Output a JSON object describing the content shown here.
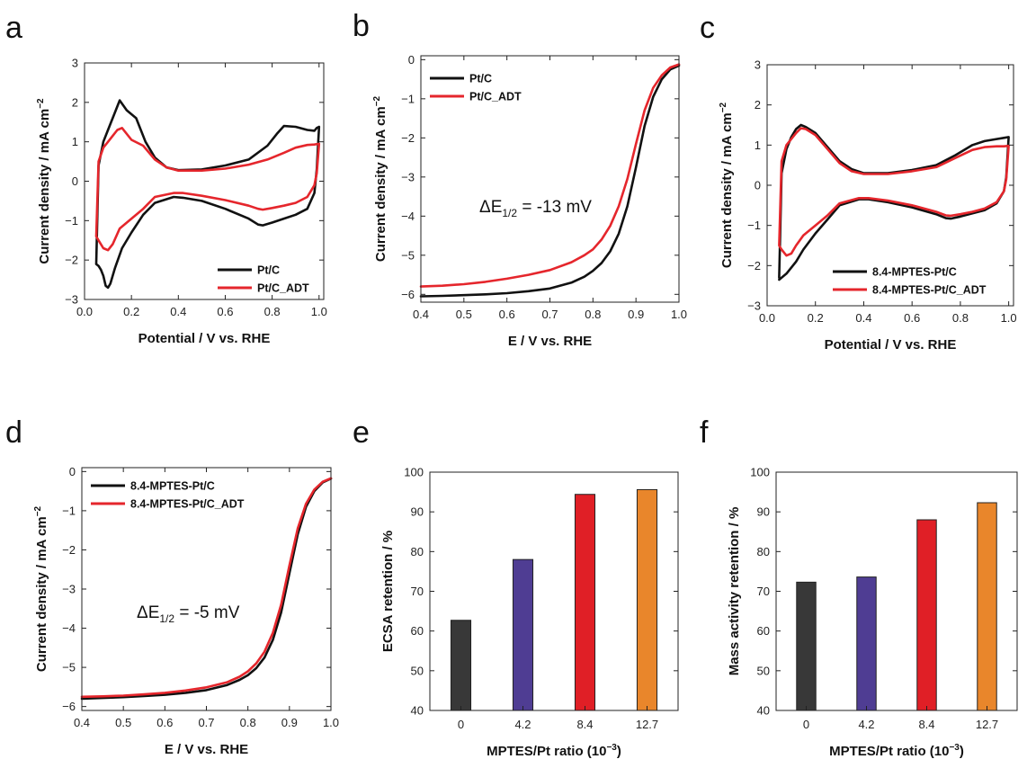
{
  "colors": {
    "pt_c": "#111111",
    "pt_c_adt": "#e5262c",
    "bar_0": "#383838",
    "bar_4_2": "#4f3d93",
    "bar_8_4": "#e01f26",
    "bar_12_7": "#e9862b"
  },
  "chart_data": [
    {
      "panel": "a",
      "type": "line",
      "subtype": "cyclic_voltammogram",
      "xlabel": "Potential / V vs. RHE",
      "ylabel": "Current density / mA cm",
      "ylabel_superscript": "−2",
      "xlim": [
        0.0,
        1.02
      ],
      "ylim": [
        -3,
        3
      ],
      "xticks": [
        0.0,
        0.2,
        0.4,
        0.6,
        0.8,
        1.0
      ],
      "xtick_labels": [
        "0.0",
        "0.2",
        "0.4",
        "0.6",
        "0.8",
        "1.0"
      ],
      "yticks": [
        -3,
        -2,
        -1,
        0,
        1,
        2,
        3
      ],
      "ytick_labels": [
        "−3",
        "−2",
        "−1",
        "0",
        "1",
        "2",
        "3"
      ],
      "legend_position": "bottom-right",
      "series": [
        {
          "name": "Pt/C",
          "color": "#111111",
          "x": [
            0.05,
            0.06,
            0.08,
            0.1,
            0.12,
            0.15,
            0.18,
            0.22,
            0.26,
            0.3,
            0.35,
            0.4,
            0.5,
            0.6,
            0.7,
            0.78,
            0.82,
            0.85,
            0.9,
            0.95,
            0.98,
            0.99,
            1.0,
            0.99,
            0.98,
            0.95,
            0.9,
            0.85,
            0.8,
            0.76,
            0.74,
            0.7,
            0.6,
            0.5,
            0.42,
            0.38,
            0.3,
            0.25,
            0.2,
            0.16,
            0.13,
            0.11,
            0.1,
            0.09,
            0.08,
            0.07,
            0.06,
            0.05
          ],
          "y": [
            -2.1,
            0.4,
            1.0,
            1.3,
            1.6,
            2.05,
            1.8,
            1.6,
            1.0,
            0.6,
            0.35,
            0.28,
            0.3,
            0.4,
            0.55,
            0.9,
            1.2,
            1.4,
            1.38,
            1.3,
            1.28,
            1.35,
            1.38,
            0.3,
            -0.3,
            -0.7,
            -0.85,
            -0.95,
            -1.05,
            -1.12,
            -1.1,
            -0.95,
            -0.7,
            -0.5,
            -0.42,
            -0.4,
            -0.55,
            -0.85,
            -1.3,
            -1.7,
            -2.2,
            -2.6,
            -2.7,
            -2.65,
            -2.4,
            -2.25,
            -2.15,
            -2.1
          ]
        },
        {
          "name": "Pt/C_ADT",
          "color": "#e5262c",
          "x": [
            0.05,
            0.06,
            0.08,
            0.1,
            0.12,
            0.14,
            0.16,
            0.2,
            0.25,
            0.3,
            0.35,
            0.4,
            0.5,
            0.6,
            0.7,
            0.78,
            0.85,
            0.9,
            0.95,
            0.98,
            1.0,
            0.99,
            0.98,
            0.95,
            0.9,
            0.85,
            0.8,
            0.76,
            0.74,
            0.7,
            0.6,
            0.5,
            0.42,
            0.38,
            0.3,
            0.25,
            0.2,
            0.15,
            0.12,
            0.1,
            0.08,
            0.06,
            0.05
          ],
          "y": [
            -1.4,
            0.5,
            0.85,
            1.0,
            1.15,
            1.3,
            1.35,
            1.05,
            0.9,
            0.55,
            0.35,
            0.27,
            0.27,
            0.32,
            0.42,
            0.55,
            0.72,
            0.85,
            0.92,
            0.93,
            0.95,
            0.2,
            -0.1,
            -0.4,
            -0.55,
            -0.62,
            -0.68,
            -0.72,
            -0.7,
            -0.62,
            -0.48,
            -0.37,
            -0.3,
            -0.3,
            -0.4,
            -0.7,
            -0.95,
            -1.2,
            -1.6,
            -1.75,
            -1.7,
            -1.5,
            -1.4
          ]
        }
      ]
    },
    {
      "panel": "b",
      "type": "line",
      "subtype": "polarization_curve",
      "xlabel": "E / V vs. RHE",
      "ylabel": "Current density / mA cm",
      "ylabel_superscript": "−2",
      "xlim": [
        0.4,
        1.0
      ],
      "ylim": [
        -6.2,
        0.1
      ],
      "xticks": [
        0.4,
        0.5,
        0.6,
        0.7,
        0.8,
        0.9,
        1.0
      ],
      "xtick_labels": [
        "0.4",
        "0.5",
        "0.6",
        "0.7",
        "0.8",
        "0.9",
        "1.0"
      ],
      "yticks": [
        0,
        -1,
        -2,
        -3,
        -4,
        -5,
        -6
      ],
      "ytick_labels": [
        "0",
        "−1",
        "−2",
        "−3",
        "−4",
        "−5",
        "−6"
      ],
      "legend_position": "top-left",
      "annotation": {
        "prefix": "ΔE",
        "subscript": "1/2",
        "suffix": " = -13 mV"
      },
      "series": [
        {
          "name": "Pt/C",
          "color": "#111111",
          "x": [
            0.4,
            0.45,
            0.5,
            0.55,
            0.6,
            0.65,
            0.7,
            0.75,
            0.78,
            0.8,
            0.82,
            0.84,
            0.86,
            0.88,
            0.9,
            0.92,
            0.94,
            0.96,
            0.98,
            1.0
          ],
          "y": [
            -6.05,
            -6.04,
            -6.02,
            -6.0,
            -5.97,
            -5.92,
            -5.85,
            -5.7,
            -5.55,
            -5.4,
            -5.2,
            -4.9,
            -4.45,
            -3.75,
            -2.75,
            -1.7,
            -0.95,
            -0.5,
            -0.25,
            -0.15
          ]
        },
        {
          "name": "Pt/C_ADT",
          "color": "#e5262c",
          "x": [
            0.4,
            0.45,
            0.5,
            0.55,
            0.6,
            0.65,
            0.7,
            0.75,
            0.78,
            0.8,
            0.82,
            0.84,
            0.86,
            0.88,
            0.9,
            0.92,
            0.94,
            0.96,
            0.98,
            1.0
          ],
          "y": [
            -5.8,
            -5.78,
            -5.74,
            -5.68,
            -5.6,
            -5.5,
            -5.38,
            -5.18,
            -5.0,
            -4.85,
            -4.6,
            -4.25,
            -3.75,
            -3.05,
            -2.15,
            -1.3,
            -0.72,
            -0.4,
            -0.2,
            -0.12
          ]
        }
      ]
    },
    {
      "panel": "c",
      "type": "line",
      "subtype": "cyclic_voltammogram",
      "xlabel": "Potential / V vs. RHE",
      "ylabel": "Current density / mA cm",
      "ylabel_superscript": "−2",
      "xlim": [
        0.0,
        1.02
      ],
      "ylim": [
        -3,
        3
      ],
      "xticks": [
        0.0,
        0.2,
        0.4,
        0.6,
        0.8,
        1.0
      ],
      "xtick_labels": [
        "0.0",
        "0.2",
        "0.4",
        "0.6",
        "0.8",
        "1.0"
      ],
      "yticks": [
        -3,
        -2,
        -1,
        0,
        1,
        2,
        3
      ],
      "ytick_labels": [
        "−3",
        "−2",
        "−1",
        "0",
        "1",
        "2",
        "3"
      ],
      "legend_position": "bottom-right",
      "series": [
        {
          "name": "8.4-MPTES-Pt/C",
          "color": "#111111",
          "x": [
            0.05,
            0.06,
            0.08,
            0.1,
            0.12,
            0.14,
            0.16,
            0.2,
            0.25,
            0.3,
            0.35,
            0.4,
            0.5,
            0.6,
            0.7,
            0.78,
            0.85,
            0.9,
            0.95,
            0.98,
            1.0,
            0.99,
            0.98,
            0.95,
            0.9,
            0.85,
            0.8,
            0.76,
            0.74,
            0.7,
            0.6,
            0.5,
            0.42,
            0.38,
            0.3,
            0.25,
            0.2,
            0.15,
            0.12,
            0.1,
            0.08,
            0.06,
            0.05
          ],
          "y": [
            -2.3,
            0.3,
            0.9,
            1.2,
            1.4,
            1.5,
            1.45,
            1.3,
            0.95,
            0.6,
            0.4,
            0.3,
            0.3,
            0.38,
            0.5,
            0.75,
            1.0,
            1.1,
            1.15,
            1.18,
            1.2,
            0.2,
            -0.15,
            -0.45,
            -0.62,
            -0.7,
            -0.78,
            -0.83,
            -0.82,
            -0.72,
            -0.55,
            -0.42,
            -0.35,
            -0.35,
            -0.5,
            -0.85,
            -1.2,
            -1.6,
            -1.9,
            -2.05,
            -2.2,
            -2.3,
            -2.35
          ]
        },
        {
          "name": "8.4-MPTES-Pt/C_ADT",
          "color": "#e5262c",
          "x": [
            0.05,
            0.06,
            0.08,
            0.1,
            0.12,
            0.14,
            0.16,
            0.2,
            0.25,
            0.3,
            0.35,
            0.4,
            0.5,
            0.6,
            0.7,
            0.78,
            0.85,
            0.9,
            0.95,
            0.98,
            1.0,
            0.99,
            0.98,
            0.95,
            0.9,
            0.85,
            0.8,
            0.76,
            0.74,
            0.7,
            0.6,
            0.5,
            0.42,
            0.38,
            0.3,
            0.25,
            0.2,
            0.15,
            0.12,
            0.1,
            0.08,
            0.06,
            0.05
          ],
          "y": [
            -1.5,
            0.6,
            1.0,
            1.15,
            1.3,
            1.42,
            1.4,
            1.25,
            0.9,
            0.55,
            0.35,
            0.28,
            0.28,
            0.35,
            0.45,
            0.68,
            0.88,
            0.95,
            0.97,
            0.97,
            0.98,
            0.15,
            -0.15,
            -0.42,
            -0.58,
            -0.66,
            -0.72,
            -0.76,
            -0.75,
            -0.66,
            -0.5,
            -0.38,
            -0.32,
            -0.32,
            -0.45,
            -0.75,
            -1.0,
            -1.25,
            -1.5,
            -1.7,
            -1.75,
            -1.6,
            -1.5
          ]
        }
      ]
    },
    {
      "panel": "d",
      "type": "line",
      "subtype": "polarization_curve",
      "xlabel": "E / V vs. RHE",
      "ylabel": "Current density / mA cm",
      "ylabel_superscript": "−2",
      "xlim": [
        0.4,
        1.0
      ],
      "ylim": [
        -6.1,
        0.1
      ],
      "xticks": [
        0.4,
        0.5,
        0.6,
        0.7,
        0.8,
        0.9,
        1.0
      ],
      "xtick_labels": [
        "0.4",
        "0.5",
        "0.6",
        "0.7",
        "0.8",
        "0.9",
        "1.0"
      ],
      "yticks": [
        0,
        -1,
        -2,
        -3,
        -4,
        -5,
        -6
      ],
      "ytick_labels": [
        "0",
        "−1",
        "−2",
        "−3",
        "−4",
        "−5",
        "−6"
      ],
      "legend_position": "top-left",
      "annotation": {
        "prefix": "ΔE",
        "subscript": "1/2",
        "suffix": " = -5 mV"
      },
      "series": [
        {
          "name": "8.4-MPTES-Pt/C",
          "color": "#111111",
          "x": [
            0.4,
            0.45,
            0.5,
            0.55,
            0.6,
            0.65,
            0.7,
            0.75,
            0.78,
            0.8,
            0.82,
            0.84,
            0.86,
            0.88,
            0.9,
            0.92,
            0.94,
            0.96,
            0.98,
            1.0
          ],
          "y": [
            -5.8,
            -5.78,
            -5.76,
            -5.73,
            -5.7,
            -5.65,
            -5.58,
            -5.45,
            -5.32,
            -5.2,
            -5.02,
            -4.75,
            -4.3,
            -3.6,
            -2.6,
            -1.6,
            -0.9,
            -0.5,
            -0.28,
            -0.18
          ]
        },
        {
          "name": "8.4-MPTES-Pt/C_ADT",
          "color": "#e5262c",
          "x": [
            0.4,
            0.45,
            0.5,
            0.55,
            0.6,
            0.65,
            0.7,
            0.75,
            0.78,
            0.8,
            0.82,
            0.84,
            0.86,
            0.88,
            0.9,
            0.92,
            0.94,
            0.96,
            0.98,
            1.0
          ],
          "y": [
            -5.75,
            -5.74,
            -5.72,
            -5.69,
            -5.65,
            -5.59,
            -5.51,
            -5.38,
            -5.24,
            -5.1,
            -4.9,
            -4.6,
            -4.12,
            -3.4,
            -2.4,
            -1.45,
            -0.82,
            -0.46,
            -0.26,
            -0.17
          ]
        }
      ]
    },
    {
      "panel": "e",
      "type": "bar",
      "xlabel": "MPTES/Pt ratio (10",
      "xlabel_superscript": "−3",
      "xlabel_suffix": ")",
      "ylabel": "ECSA retention / %",
      "categories": [
        "0",
        "4.2",
        "8.4",
        "12.7"
      ],
      "values": [
        62.7,
        78.0,
        94.4,
        95.6
      ],
      "ylim": [
        40,
        100
      ],
      "yticks": [
        40,
        50,
        60,
        70,
        80,
        90,
        100
      ],
      "ytick_labels": [
        "40",
        "50",
        "60",
        "70",
        "80",
        "90",
        "100"
      ]
    },
    {
      "panel": "f",
      "type": "bar",
      "xlabel": "MPTES/Pt ratio (10",
      "xlabel_superscript": "−3",
      "xlabel_suffix": ")",
      "ylabel": "Mass activity retention / %",
      "categories": [
        "0",
        "4.2",
        "8.4",
        "12.7"
      ],
      "values": [
        72.3,
        73.6,
        88.0,
        92.3
      ],
      "ylim": [
        40,
        100
      ],
      "yticks": [
        40,
        50,
        60,
        70,
        80,
        90,
        100
      ],
      "ytick_labels": [
        "40",
        "50",
        "60",
        "70",
        "80",
        "90",
        "100"
      ]
    }
  ],
  "panel_letters": [
    "a",
    "b",
    "c",
    "d",
    "e",
    "f"
  ]
}
